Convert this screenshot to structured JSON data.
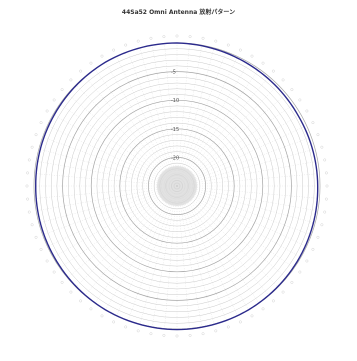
{
  "chart_data": {
    "type": "line",
    "polar": true,
    "title": "44Sa52 Omni Antenna 放射パターン",
    "r_tick_labels": [
      "-5",
      "-10",
      "-15",
      "-20"
    ],
    "r_ticks": [
      -5,
      -10,
      -15,
      -20
    ],
    "r_range": [
      -25,
      0
    ],
    "angle_step_deg": 5,
    "grid": true,
    "series": [
      {
        "values_db": [
          0,
          -0.3,
          -0.5,
          -0.4,
          -0.2,
          0,
          0.1,
          0,
          -0.2,
          -0.3,
          -0.2,
          0
        ],
        "angles_deg": [
          0,
          30,
          60,
          90,
          120,
          150,
          180,
          210,
          240,
          270,
          300,
          330
        ],
        "color": "#2b2a8c"
      }
    ],
    "colors": {
      "trace": "#2b2a8c",
      "grid": "#9a9a9a",
      "background": "#ffffff"
    }
  }
}
